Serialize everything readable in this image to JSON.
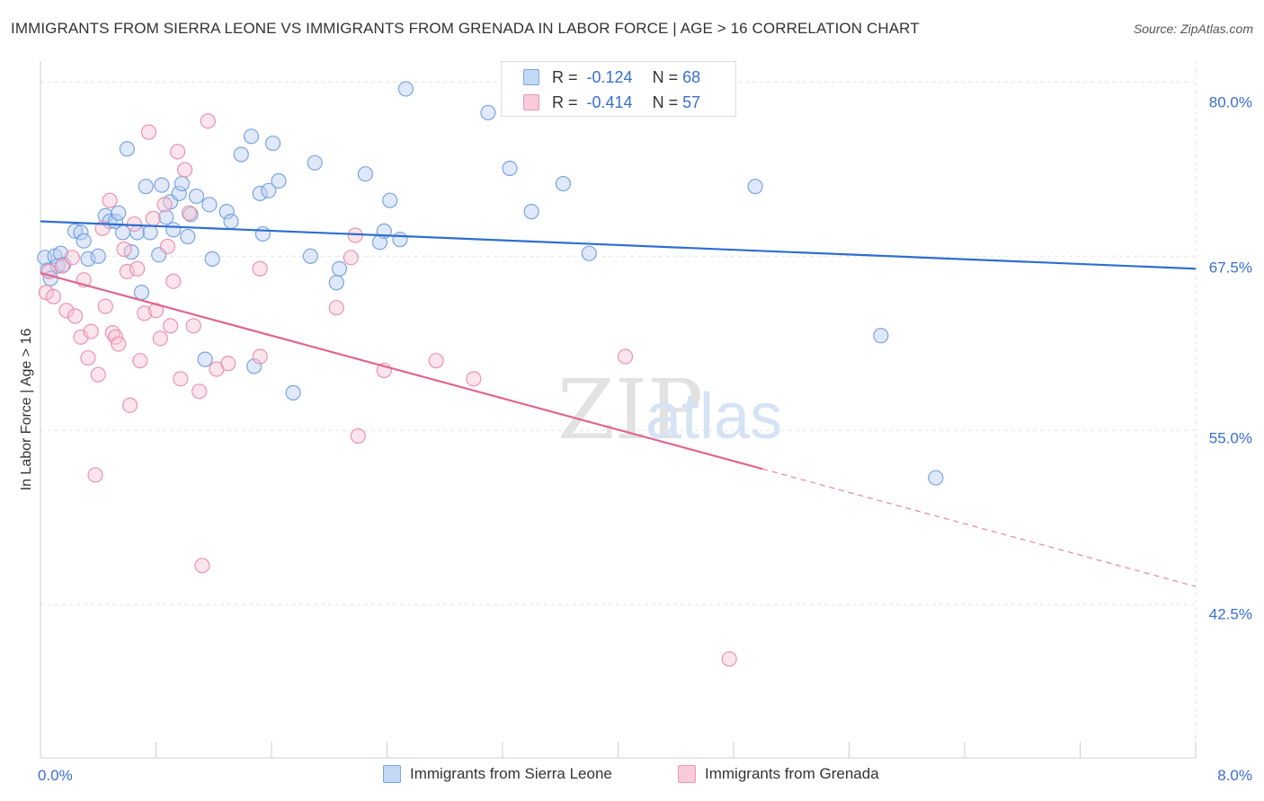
{
  "title": "IMMIGRANTS FROM SIERRA LEONE VS IMMIGRANTS FROM GRENADA IN LABOR FORCE | AGE > 16 CORRELATION CHART",
  "source": "Source: ZipAtlas.com",
  "watermark": {
    "zip": "ZIP",
    "atlas": "atlas"
  },
  "legend": {
    "r_label": "R =",
    "n_label": "N =",
    "rows": [
      {
        "r": "-0.124",
        "n": "68",
        "color": "#a9c6ef"
      },
      {
        "r": "-0.414",
        "n": "57",
        "color": "#f7b9cb"
      }
    ]
  },
  "chart_data": {
    "type": "scatter",
    "title": "IMMIGRANTS FROM SIERRA LEONE VS IMMIGRANTS FROM GRENADA IN LABOR FORCE | AGE > 16 CORRELATION CHART",
    "xlabel": "",
    "ylabel": "In Labor Force | Age > 16",
    "xlim": [
      0,
      8
    ],
    "ylim": [
      31.5,
      81.5
    ],
    "x_tick_labels": [
      "0.0%",
      "8.0%"
    ],
    "y_ticks": [
      80.0,
      67.5,
      55.0,
      42.5
    ],
    "y_tick_labels": [
      "80.0%",
      "67.5%",
      "55.0%",
      "42.5%"
    ],
    "grid": true,
    "legend_position": "top-center",
    "series": [
      {
        "name": "Immigrants from Sierra Leone",
        "color": "#6d9be0",
        "fill": "#b7cff2",
        "trend": {
          "x1": 0.0,
          "y1": 70.0,
          "x2": 8.0,
          "y2": 66.6,
          "solid_to": 8.0
        },
        "points": [
          [
            0.03,
            67.4
          ],
          [
            0.05,
            66.5
          ],
          [
            0.07,
            65.9
          ],
          [
            0.1,
            67.5
          ],
          [
            0.12,
            66.8
          ],
          [
            0.14,
            67.7
          ],
          [
            0.16,
            66.9
          ],
          [
            0.24,
            69.3
          ],
          [
            0.28,
            69.2
          ],
          [
            0.3,
            68.6
          ],
          [
            0.33,
            67.3
          ],
          [
            0.4,
            67.5
          ],
          [
            0.45,
            70.4
          ],
          [
            0.48,
            70.0
          ],
          [
            0.52,
            70.0
          ],
          [
            0.54,
            70.6
          ],
          [
            0.57,
            69.2
          ],
          [
            0.6,
            75.2
          ],
          [
            0.63,
            67.8
          ],
          [
            0.67,
            69.2
          ],
          [
            0.7,
            64.9
          ],
          [
            0.73,
            72.5
          ],
          [
            0.76,
            69.2
          ],
          [
            0.82,
            67.6
          ],
          [
            0.84,
            72.6
          ],
          [
            0.87,
            70.3
          ],
          [
            0.9,
            71.4
          ],
          [
            0.92,
            69.4
          ],
          [
            0.96,
            72.0
          ],
          [
            0.98,
            72.7
          ],
          [
            1.02,
            68.9
          ],
          [
            1.04,
            70.5
          ],
          [
            1.08,
            71.8
          ],
          [
            1.14,
            60.1
          ],
          [
            1.17,
            71.2
          ],
          [
            1.19,
            67.3
          ],
          [
            1.29,
            70.7
          ],
          [
            1.32,
            70.0
          ],
          [
            1.39,
            74.8
          ],
          [
            1.46,
            76.1
          ],
          [
            1.48,
            59.6
          ],
          [
            1.52,
            72.0
          ],
          [
            1.54,
            69.1
          ],
          [
            1.58,
            72.2
          ],
          [
            1.61,
            75.6
          ],
          [
            1.65,
            72.9
          ],
          [
            1.75,
            57.7
          ],
          [
            1.87,
            67.5
          ],
          [
            1.9,
            74.2
          ],
          [
            2.05,
            65.6
          ],
          [
            2.07,
            66.6
          ],
          [
            2.25,
            73.4
          ],
          [
            2.35,
            68.5
          ],
          [
            2.38,
            69.3
          ],
          [
            2.42,
            71.5
          ],
          [
            2.49,
            68.7
          ],
          [
            2.53,
            79.5
          ],
          [
            3.1,
            77.8
          ],
          [
            3.25,
            73.8
          ],
          [
            3.4,
            70.7
          ],
          [
            3.62,
            72.7
          ],
          [
            3.8,
            67.7
          ],
          [
            4.95,
            72.5
          ],
          [
            5.82,
            61.8
          ],
          [
            6.2,
            51.6
          ]
        ]
      },
      {
        "name": "Immigrants from Grenada",
        "color": "#e88aa7",
        "fill": "#f7c3d2",
        "trend": {
          "x1": 0.0,
          "y1": 66.3,
          "x2": 8.0,
          "y2": 43.8,
          "solid_to": 5.0
        },
        "points": [
          [
            0.04,
            64.9
          ],
          [
            0.06,
            66.4
          ],
          [
            0.09,
            64.6
          ],
          [
            0.15,
            66.8
          ],
          [
            0.18,
            63.6
          ],
          [
            0.22,
            67.4
          ],
          [
            0.24,
            63.2
          ],
          [
            0.28,
            61.7
          ],
          [
            0.3,
            65.8
          ],
          [
            0.33,
            60.2
          ],
          [
            0.35,
            62.1
          ],
          [
            0.38,
            51.8
          ],
          [
            0.4,
            59.0
          ],
          [
            0.43,
            69.5
          ],
          [
            0.45,
            63.9
          ],
          [
            0.48,
            71.5
          ],
          [
            0.5,
            62.0
          ],
          [
            0.52,
            61.7
          ],
          [
            0.54,
            61.2
          ],
          [
            0.58,
            68.0
          ],
          [
            0.6,
            66.4
          ],
          [
            0.62,
            56.8
          ],
          [
            0.65,
            69.8
          ],
          [
            0.67,
            66.6
          ],
          [
            0.69,
            60.0
          ],
          [
            0.72,
            63.4
          ],
          [
            0.75,
            76.4
          ],
          [
            0.78,
            70.2
          ],
          [
            0.8,
            63.6
          ],
          [
            0.83,
            61.6
          ],
          [
            0.86,
            71.2
          ],
          [
            0.88,
            68.2
          ],
          [
            0.9,
            62.5
          ],
          [
            0.92,
            65.7
          ],
          [
            0.95,
            75.0
          ],
          [
            0.97,
            58.7
          ],
          [
            1.0,
            73.7
          ],
          [
            1.03,
            70.6
          ],
          [
            1.06,
            62.5
          ],
          [
            1.1,
            57.8
          ],
          [
            1.12,
            45.3
          ],
          [
            1.16,
            77.2
          ],
          [
            1.22,
            59.4
          ],
          [
            1.3,
            59.8
          ],
          [
            1.52,
            66.6
          ],
          [
            1.52,
            60.3
          ],
          [
            2.05,
            63.8
          ],
          [
            2.15,
            67.4
          ],
          [
            2.18,
            69.0
          ],
          [
            2.2,
            54.6
          ],
          [
            2.38,
            59.3
          ],
          [
            2.74,
            60.0
          ],
          [
            3.0,
            58.7
          ],
          [
            4.05,
            60.3
          ],
          [
            4.77,
            38.6
          ]
        ]
      }
    ]
  },
  "bottom_legend": [
    "Immigrants from Sierra Leone",
    "Immigrants from Grenada"
  ]
}
